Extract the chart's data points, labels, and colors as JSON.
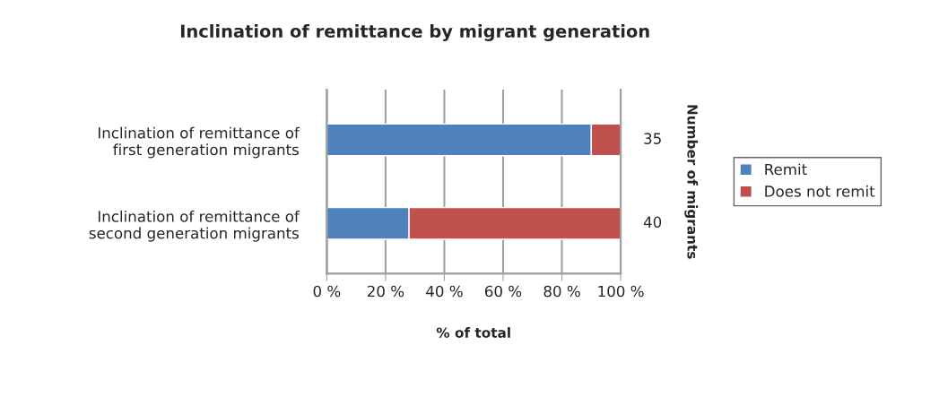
{
  "chart_data": {
    "type": "bar",
    "orientation": "horizontal",
    "stacked": true,
    "title": "Inclination of remittance by migrant generation",
    "xlabel": "% of total",
    "y2label": "Number of migrants",
    "categories": [
      "Inclination of remittance of\nfirst generation migrants",
      "Inclination of remittance of\nsecond generation migrants"
    ],
    "series": [
      {
        "name": "Remit",
        "color": "#4f81bd",
        "values": [
          90,
          28
        ]
      },
      {
        "name": "Does not remit",
        "color": "#c0504d",
        "values": [
          10,
          72
        ]
      }
    ],
    "xlim": [
      0,
      100
    ],
    "xticks": [
      {
        "value": 0,
        "label": "0 %"
      },
      {
        "value": 20,
        "label": "20 %"
      },
      {
        "value": 40,
        "label": "40 %"
      },
      {
        "value": 60,
        "label": "60 %"
      },
      {
        "value": 80,
        "label": "80 %"
      },
      {
        "value": 100,
        "label": "100 %"
      }
    ],
    "annotations": [
      {
        "text": "35",
        "x": 100,
        "y": "Inclination of remittance of\nfirst generation migrants"
      },
      {
        "text": "40",
        "x": 100,
        "y": "Inclination of remittance of\nsecond generation migrants"
      }
    ],
    "grid": "x",
    "legend": "right"
  }
}
